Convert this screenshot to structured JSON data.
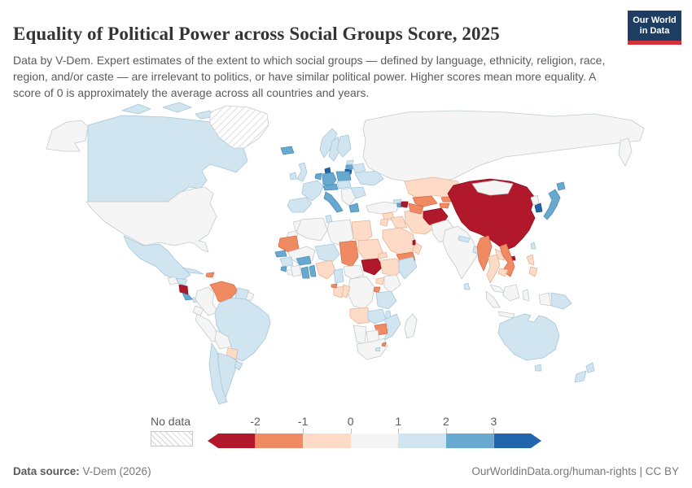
{
  "header": {
    "title": "Equality of Political Power across Social Groups Score, 2025",
    "subtitle": "Data by V-Dem. Expert estimates of the extent to which social groups — defined by language, ethnicity, religion, race, region, and/or caste — are irrelevant to politics, or have similar political power. Higher scores mean more equality. A score of 0 is approximately the average across all countries and years.",
    "logo": {
      "line1": "Our World",
      "line2": "in Data",
      "bg": "#1d3d63",
      "stripe": "#d4323b"
    }
  },
  "legend": {
    "no_data_label": "No data",
    "ticks": [
      "-2",
      "-1",
      "0",
      "1",
      "2",
      "3"
    ],
    "segments": [
      "red_dark",
      "orange",
      "peach",
      "neutral",
      "blue_light",
      "blue_mid",
      "blue_dark"
    ]
  },
  "footer": {
    "source_label": "Data source:",
    "source_value": " V-Dem (2026)",
    "right": "OurWorldinData.org/human-rights | CC BY"
  },
  "chart_data": {
    "type": "heatmap",
    "subtype": "world-choropleth",
    "title": "Equality of Political Power across Social Groups Score, 2025",
    "unit": "score (0 ≈ average across all countries and years)",
    "legend_position": "bottom",
    "scale_ticks": [
      -2,
      -1,
      0,
      1,
      2,
      3
    ],
    "bucket_ranges": {
      "red_dark": "< -2",
      "orange": "-2 to -1",
      "peach": "-1 to 0",
      "neutral": "0 to 1",
      "blue_light": "1 to 2",
      "blue_mid": "2 to 3",
      "blue_dark": "> 3",
      "no_data": "No data"
    },
    "palette": {
      "red_dark": {
        "fill": "#b2182b",
        "stroke": "#8a1020"
      },
      "orange": {
        "fill": "#ef8a62",
        "stroke": "#d96a45"
      },
      "peach": {
        "fill": "#fddbc7",
        "stroke": "#e3b496"
      },
      "neutral": {
        "fill": "#f4f5f4",
        "stroke": "#c3cacd"
      },
      "blue_light": {
        "fill": "#d1e5f0",
        "stroke": "#a5c7db"
      },
      "blue_mid": {
        "fill": "#67a9cf",
        "stroke": "#4a8cb5"
      },
      "blue_dark": {
        "fill": "#2166ac",
        "stroke": "#15487e"
      },
      "no_data": {
        "fill": "hatch",
        "stroke": "#c9c9c9"
      }
    },
    "countries": {
      "alaska": "neutral",
      "canada": "blue_light",
      "arctic_islands_1": "blue_light",
      "arctic_islands_2": "blue_light",
      "arctic_islands_3": "blue_light",
      "greenland": "no_data",
      "usa": "neutral",
      "mexico": "blue_light",
      "guatemala": "neutral",
      "honduras": "blue_light",
      "nicaragua": "red_dark",
      "costa_rica": "blue_mid",
      "panama": "blue_light",
      "cuba": "blue_light",
      "haiti_dr": "orange",
      "colombia": "neutral",
      "venezuela": "orange",
      "guyanas": "blue_light",
      "french_guiana": "neutral",
      "brazil": "blue_light",
      "ecuador": "neutral",
      "peru": "neutral",
      "bolivia": "neutral",
      "paraguay": "peach",
      "chile": "blue_light",
      "argentina": "blue_light",
      "uruguay": "blue_light",
      "iceland": "blue_mid",
      "ireland": "blue_light",
      "uk": "blue_light",
      "norway": "blue_light",
      "sweden": "blue_light",
      "finland": "blue_light",
      "denmark": "blue_dark",
      "estonia": "blue_light",
      "latvia": "blue_mid",
      "lithuania": "blue_dark",
      "germany": "blue_mid",
      "poland": "blue_mid",
      "benelux": "blue_mid",
      "france": "blue_light",
      "iberia": "blue_light",
      "italy": "blue_mid",
      "switzerland_austria": "blue_mid",
      "czech_hungary": "blue_light",
      "balkans": "neutral",
      "greece": "blue_mid",
      "romania_bulgaria": "blue_light",
      "ukraine": "blue_light",
      "belarus": "blue_light",
      "russia": "neutral",
      "kamchatka": "neutral",
      "turkey": "neutral",
      "syria": "peach",
      "iraq": "peach",
      "iran": "peach",
      "saudi_arabia": "peach",
      "yemen": "orange",
      "oman": "peach",
      "qatar": "red_dark",
      "jordan_israel": "peach",
      "georgia": "blue_light",
      "armenia": "blue_mid",
      "azerbaijan": "red_dark",
      "kazakhstan": "peach",
      "uzbekistan": "orange",
      "turkmenistan": "orange",
      "kyrgyzstan": "orange",
      "tajikistan": "orange",
      "afghanistan": "red_dark",
      "pakistan": "neutral",
      "india": "neutral",
      "nepal": "blue_light",
      "bangladesh": "blue_light",
      "sri_lanka": "blue_light",
      "china": "red_dark",
      "hainan": "red_dark",
      "mongolia": "neutral",
      "north_korea": "neutral",
      "south_korea": "blue_dark",
      "japan": "blue_mid",
      "hokkaido": "blue_mid",
      "taiwan": "blue_light",
      "myanmar": "orange",
      "thailand": "peach",
      "laos": "peach",
      "vietnam": "orange",
      "cambodia": "peach",
      "malaysia": "neutral",
      "philippines_n": "peach",
      "philippines_s": "peach",
      "sumatra": "neutral",
      "java": "neutral",
      "borneo": "neutral",
      "sulawesi": "neutral",
      "papua_west": "neutral",
      "papua_new_guinea": "blue_light",
      "australia": "blue_light",
      "tasmania": "blue_light",
      "nz_north": "blue_light",
      "nz_south": "blue_light",
      "morocco": "neutral",
      "w_sahara": "neutral",
      "algeria": "neutral",
      "tunisia": "blue_light",
      "libya": "neutral",
      "egypt": "peach",
      "mauritania": "orange",
      "mali": "neutral",
      "niger": "blue_light",
      "chad": "orange",
      "sudan": "peach",
      "eritrea": "peach",
      "south_sudan": "red_dark",
      "ethiopia": "peach",
      "somalia": "blue_light",
      "senegal": "blue_mid",
      "guinea": "blue_light",
      "sierra_leone": "blue_mid",
      "liberia": "neutral",
      "ivory_coast": "neutral",
      "ghana": "blue_mid",
      "togo_benin": "blue_mid",
      "burkina_faso": "blue_mid",
      "nigeria": "peach",
      "cameroon": "blue_light",
      "car": "neutral",
      "eq_guinea": "orange",
      "gabon": "peach",
      "congo": "peach",
      "drc": "neutral",
      "uganda": "peach",
      "kenya": "neutral",
      "rwanda_burundi": "orange",
      "tanzania": "blue_light",
      "angola": "peach",
      "zambia": "blue_light",
      "malawi": "blue_light",
      "mozambique": "blue_light",
      "zimbabwe": "orange",
      "botswana": "neutral",
      "namibia": "neutral",
      "south_africa": "neutral",
      "lesotho": "blue_light",
      "eswatini": "orange",
      "madagascar": "neutral"
    }
  }
}
